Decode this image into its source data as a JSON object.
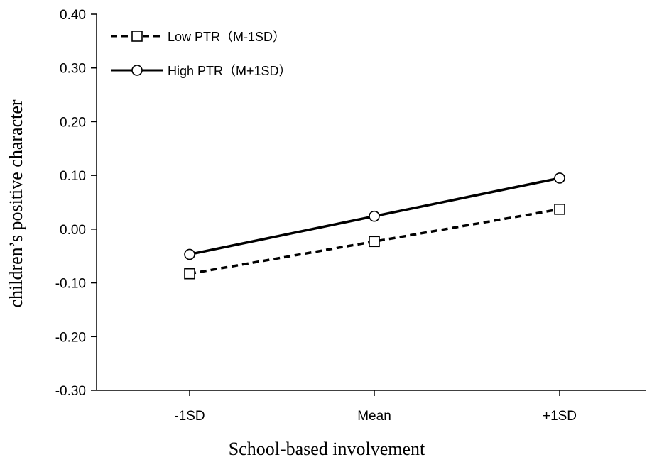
{
  "chart_data": {
    "type": "line",
    "title": "",
    "xlabel": "School-based involvement",
    "ylabel": "children’s positive character",
    "categories": [
      "-1SD",
      "Mean",
      "+1SD"
    ],
    "yticks": [
      "0.40",
      "0.30",
      "0.20",
      "0.10",
      "0.00",
      "-0.10",
      "-0.20",
      "-0.30"
    ],
    "ylim": [
      -0.3,
      0.4
    ],
    "grid": false,
    "legend_position": "top-left",
    "series": [
      {
        "name": "Low PTR（M-1SD）",
        "values": [
          -0.083,
          -0.023,
          0.037
        ],
        "line_style": "dashed",
        "marker": "square",
        "color": "#000000"
      },
      {
        "name": "High PTR（M+1SD）",
        "values": [
          -0.047,
          0.024,
          0.095
        ],
        "line_style": "solid",
        "marker": "circle",
        "color": "#000000"
      }
    ]
  }
}
